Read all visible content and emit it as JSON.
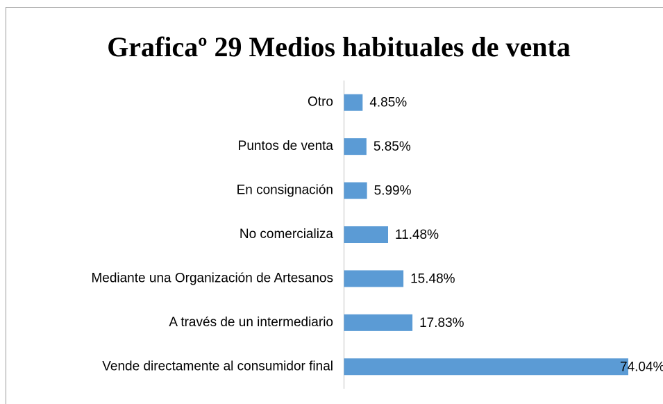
{
  "chart_data": {
    "type": "bar",
    "orientation": "horizontal",
    "title": "Graficaº 29 Medios habituales de venta",
    "categories": [
      "Otro",
      "Puntos de venta",
      "En consignación",
      "No comercializa",
      "Mediante una Organización de Artesanos",
      "A través de un intermediario",
      "Vende directamente al consumidor final"
    ],
    "values": [
      4.85,
      5.85,
      5.99,
      11.48,
      15.48,
      17.83,
      74.04
    ],
    "value_labels": [
      "4.85%",
      "5.85%",
      "5.99%",
      "11.48%",
      "15.48%",
      "17.83%",
      "74.04%"
    ],
    "color": "#5b9bd5"
  }
}
